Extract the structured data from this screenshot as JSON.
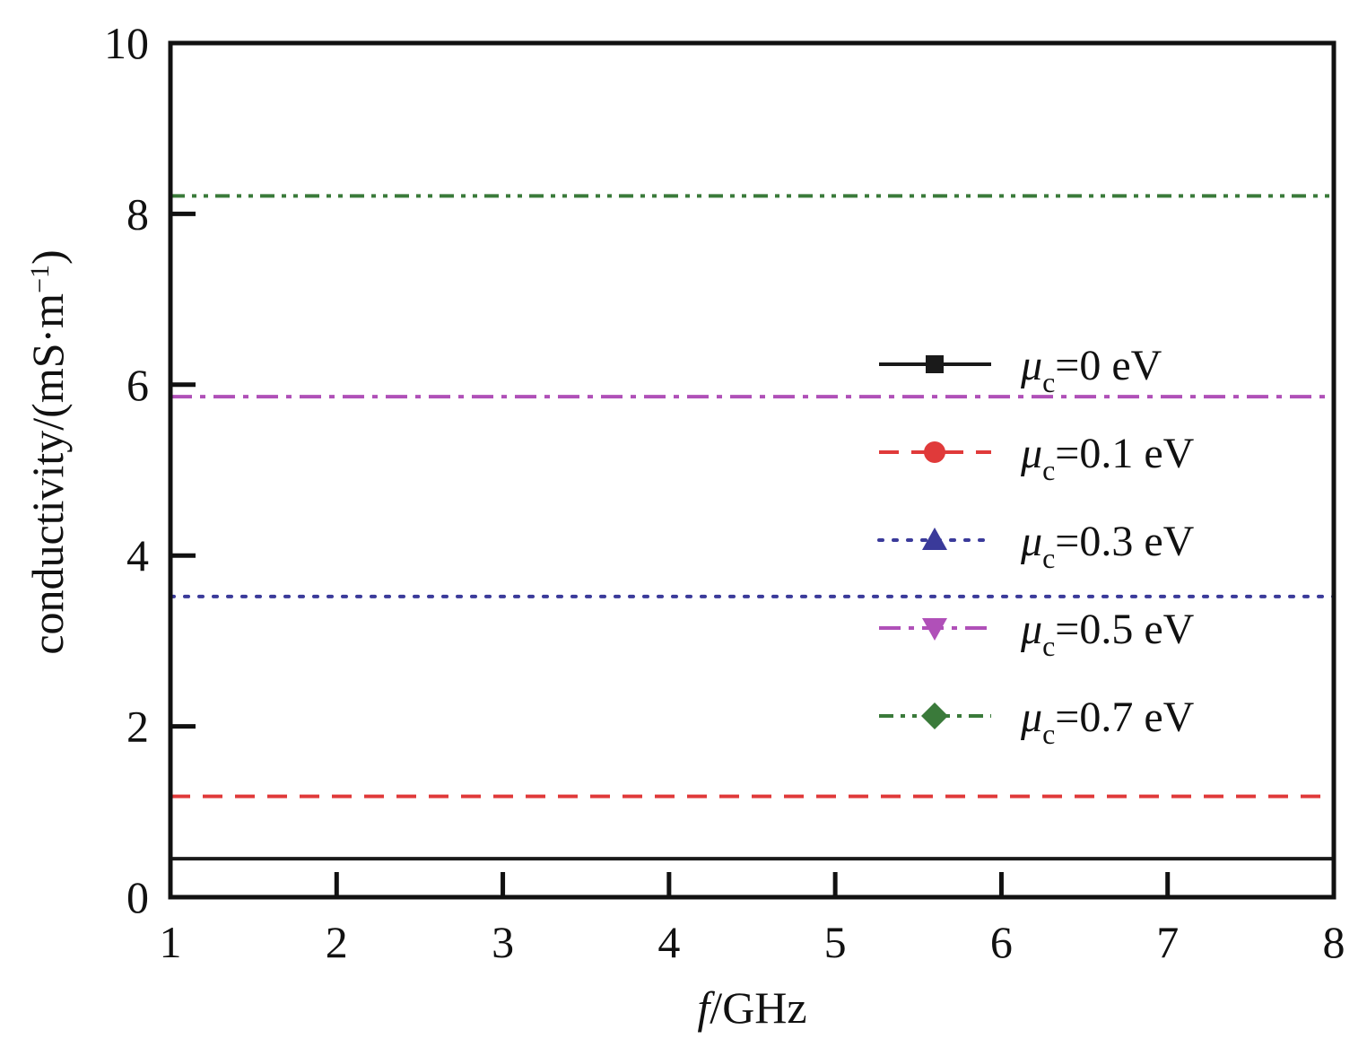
{
  "chart_data": {
    "type": "line",
    "xlabel_italic": "f",
    "xlabel_rest": "/GHz",
    "ylabel": "conductivity/(mS·m",
    "ylabel_sup": "−1",
    "ylabel_close": ")",
    "xlim": [
      1,
      8
    ],
    "ylim": [
      0,
      10
    ],
    "xticks": [
      1,
      2,
      3,
      4,
      5,
      6,
      7,
      8
    ],
    "yticks": [
      0,
      2,
      4,
      6,
      8,
      10
    ],
    "grid": false,
    "legend_position": "right",
    "x": [
      1,
      8
    ],
    "series": [
      {
        "name": "μc=0 eV",
        "sym": "μ",
        "sub": "c",
        "rest": "=0 eV",
        "values": [
          0.45,
          0.45
        ],
        "color": "#1a1a1a",
        "dash": "solid",
        "marker": "square"
      },
      {
        "name": "μc=0.1 eV",
        "sym": "μ",
        "sub": "c",
        "rest": "=0.1 eV",
        "values": [
          1.18,
          1.18
        ],
        "color": "#e03a3a",
        "dash": "dash",
        "marker": "circle"
      },
      {
        "name": "μc=0.3 eV",
        "sym": "μ",
        "sub": "c",
        "rest": "=0.3 eV",
        "values": [
          3.52,
          3.52
        ],
        "color": "#3a3a9a",
        "dash": "dot",
        "marker": "triangle-up"
      },
      {
        "name": "μc=0.5 eV",
        "sym": "μ",
        "sub": "c",
        "rest": "=0.5 eV",
        "values": [
          5.86,
          5.86
        ],
        "color": "#b050b8",
        "dash": "dashdot",
        "marker": "triangle-down"
      },
      {
        "name": "μc=0.7 eV",
        "sym": "μ",
        "sub": "c",
        "rest": "=0.7 eV",
        "values": [
          8.21,
          8.21
        ],
        "color": "#3a7a3a",
        "dash": "dashdotdot",
        "marker": "diamond"
      }
    ]
  }
}
